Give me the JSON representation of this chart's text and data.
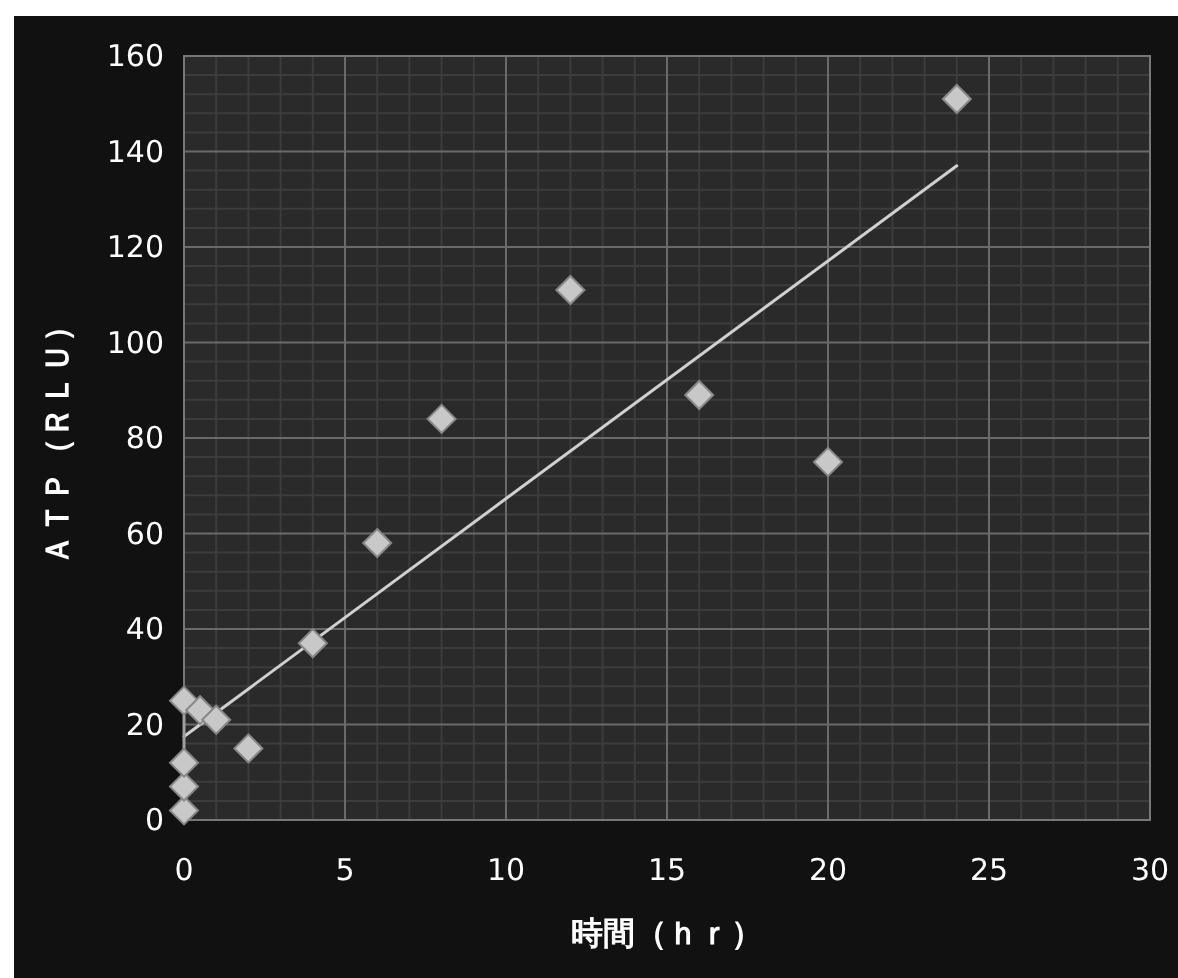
{
  "chart_data": {
    "type": "scatter",
    "xlabel": "時間（ｈｒ）",
    "ylabel": "ＡＴＰ（ＲＬＵ）",
    "xlim": [
      0,
      30
    ],
    "xticks": [
      0,
      5,
      10,
      15,
      20,
      25,
      30
    ],
    "ylim": [
      0,
      160
    ],
    "yticks": [
      0,
      20,
      40,
      60,
      80,
      100,
      120,
      140,
      160
    ],
    "grid": true,
    "series": [
      {
        "marker": "diamond",
        "color": "#c8c8c8",
        "x": [
          0,
          0,
          0,
          0,
          0.5,
          1,
          2,
          4,
          6,
          8,
          12,
          16,
          20,
          24
        ],
        "values": [
          2,
          7,
          12,
          25,
          23,
          21,
          15,
          37,
          58,
          84,
          111,
          89,
          75,
          151
        ]
      },
      {
        "type": "line",
        "color": "#d0d0d0",
        "x": [
          0,
          24
        ],
        "values": [
          17.5,
          137
        ]
      },
      {
        "type": "line",
        "color": "#a0a0a0",
        "x": [
          0,
          0
        ],
        "values": [
          12,
          25
        ]
      }
    ]
  }
}
